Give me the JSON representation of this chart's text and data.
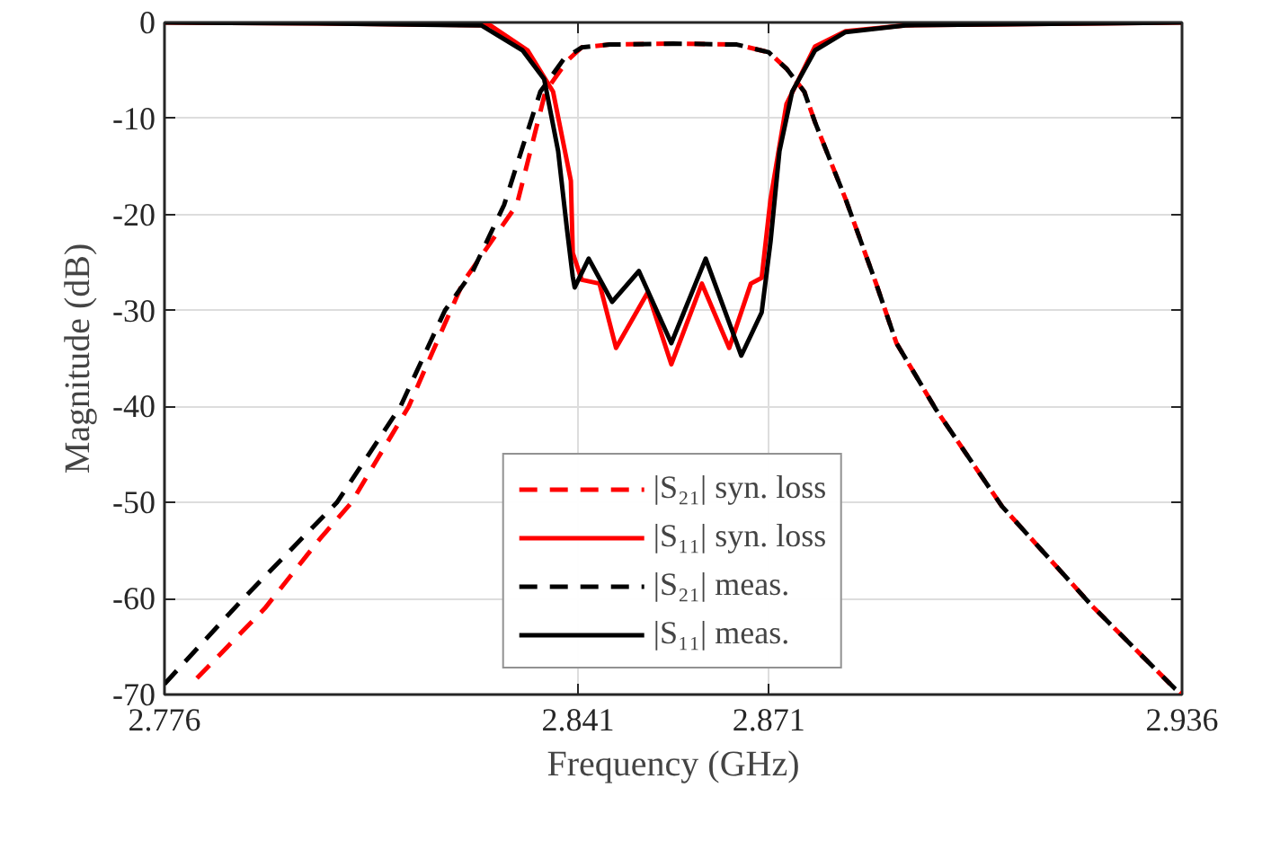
{
  "chart_data": {
    "type": "line",
    "xlabel": "Frequency (GHz)",
    "ylabel": "Magnitude (dB)",
    "xlim": [
      2.776,
      2.936
    ],
    "xticks": [
      2.776,
      2.841,
      2.871,
      2.936
    ],
    "ylim": [
      -70,
      0
    ],
    "yticks": [
      -70,
      -60,
      -50,
      -40,
      -30,
      -20,
      -10,
      0
    ],
    "grid": true,
    "legend": "bottom",
    "series": [
      {
        "name": "|S₂₁| syn. loss",
        "color": "#ff0000",
        "line_style": "dashed",
        "x": [
          2.7811,
          2.7918,
          2.8003,
          2.8054,
          2.8144,
          2.821,
          2.823,
          2.8314,
          2.8359,
          2.8393,
          2.8416,
          2.846,
          2.856,
          2.866,
          2.871,
          2.8738,
          2.8766,
          2.8783,
          2.8831,
          2.8879,
          2.8911,
          2.8973,
          2.9077,
          2.9219,
          2.9349,
          2.936
        ],
        "values": [
          -68.3,
          -61.0,
          -53.9,
          -50,
          -40,
          -30,
          -27,
          -19,
          -7.2,
          -4.0,
          -2.6,
          -2.3,
          -2.2,
          -2.3,
          -3.1,
          -4.8,
          -7.2,
          -10.4,
          -18.4,
          -27.2,
          -33.4,
          -40.3,
          -50.4,
          -60.8,
          -69.4,
          -70
        ]
      },
      {
        "name": "|S₁₁| syn. loss",
        "color": "#ff0000",
        "line_style": "solid",
        "x": [
          2.776,
          2.8,
          2.8272,
          2.8331,
          2.8371,
          2.8399,
          2.8402,
          2.8416,
          2.8444,
          2.847,
          2.852,
          2.8557,
          2.8605,
          2.8648,
          2.8682,
          2.8699,
          2.8713,
          2.8738,
          2.8783,
          2.8831,
          2.8925,
          2.936
        ],
        "values": [
          0,
          -0.1,
          -0.3,
          -2.9,
          -7.2,
          -16.5,
          -24,
          -26.8,
          -27.2,
          -33.9,
          -28.1,
          -35.6,
          -27.2,
          -33.9,
          -27.2,
          -26.6,
          -18.4,
          -8.5,
          -2.5,
          -0.9,
          -0.3,
          0
        ]
      },
      {
        "name": "|S₂₁| meas.",
        "color": "#000000",
        "line_style": "dashed",
        "x": [
          2.776,
          2.7884,
          2.8031,
          2.8131,
          2.8201,
          2.8244,
          2.8294,
          2.8351,
          2.8388,
          2.8416,
          2.846,
          2.856,
          2.866,
          2.871,
          2.8738,
          2.8766,
          2.8783,
          2.8831,
          2.8879,
          2.8911,
          2.8973,
          2.9077,
          2.9219,
          2.9349,
          2.936
        ],
        "values": [
          -68.9,
          -60,
          -50,
          -40,
          -30,
          -26,
          -19,
          -7.2,
          -3.8,
          -2.6,
          -2.3,
          -2.2,
          -2.3,
          -3.1,
          -4.8,
          -7.2,
          -10.4,
          -18.4,
          -27.2,
          -33.4,
          -40.3,
          -50.4,
          -60.8,
          -69.4,
          -70
        ]
      },
      {
        "name": "|S₁₁| meas.",
        "color": "#000000",
        "line_style": "solid",
        "x": [
          2.776,
          2.8,
          2.8258,
          2.8323,
          2.8357,
          2.8379,
          2.8393,
          2.8402,
          2.8405,
          2.8427,
          2.8464,
          2.8506,
          2.8557,
          2.8611,
          2.8667,
          2.8699,
          2.8713,
          2.8727,
          2.8747,
          2.8783,
          2.8831,
          2.8925,
          2.936
        ],
        "values": [
          0,
          -0.1,
          -0.3,
          -2.9,
          -5.9,
          -13.4,
          -21.6,
          -26.5,
          -27.6,
          -24.6,
          -29.1,
          -25.9,
          -33.4,
          -24.6,
          -34.7,
          -30.2,
          -22.8,
          -13.4,
          -7.2,
          -2.9,
          -1.0,
          -0.3,
          0
        ]
      }
    ]
  }
}
